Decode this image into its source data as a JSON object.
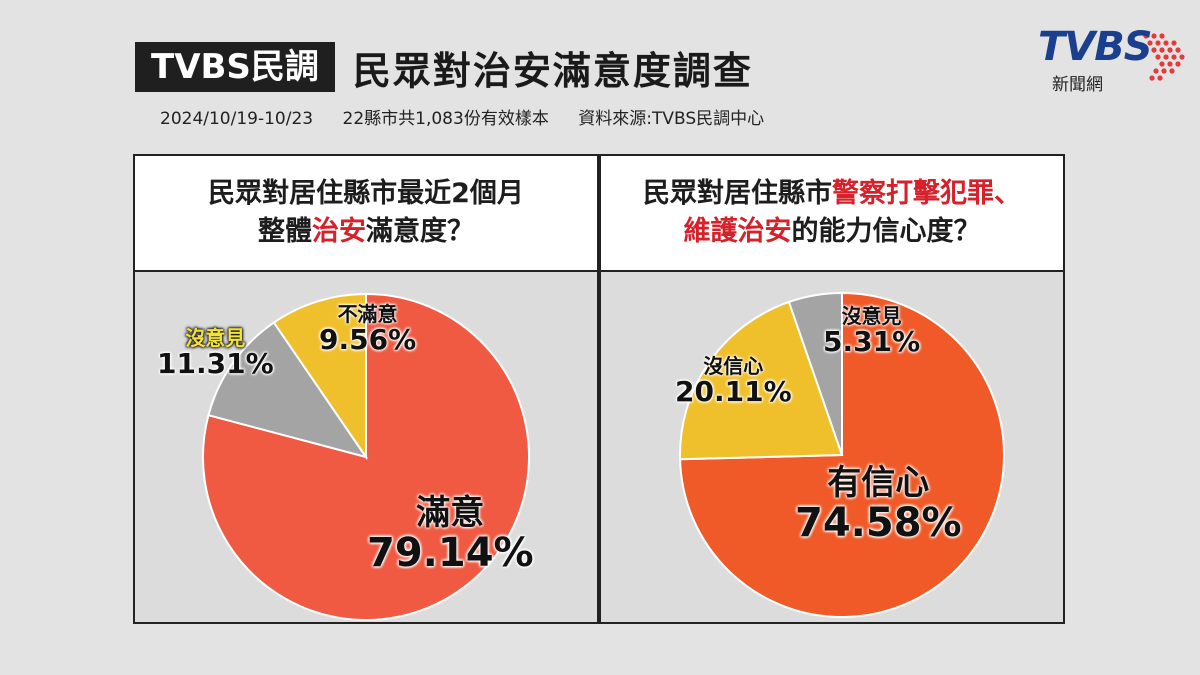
{
  "header": {
    "brand": "TVBS民調",
    "title": "民眾對治安滿意度調查",
    "date_range": "2024/10/19-10/23",
    "sample": "22縣市共1,083份有效樣本",
    "source": "資料來源:TVBS民調中心"
  },
  "logo": {
    "text": "TVBS",
    "subtext": "新聞網"
  },
  "colors": {
    "red": "#f05a42",
    "yellow": "#f0c02c",
    "gray": "#a4a4a4",
    "accent": "#d6202a"
  },
  "chart_data": [
    {
      "type": "pie",
      "question_line1": "民眾對居住縣市最近2個月",
      "question_line2_pre": "整體",
      "question_line2_hl": "治安",
      "question_line2_post": "滿意度？",
      "slices": [
        {
          "label": "滿意",
          "value": 79.14,
          "display": "79.14%",
          "color": "#f05a42"
        },
        {
          "label": "沒意見",
          "value": 11.31,
          "display": "11.31%",
          "color": "#a4a4a4"
        },
        {
          "label": "不滿意",
          "value": 9.56,
          "display": "9.56%",
          "color": "#f0c02c"
        }
      ]
    },
    {
      "type": "pie",
      "question_line1_pre": "民眾對居住縣市",
      "question_line1_hl": "警察打擊犯罪、",
      "question_line2_hl": "維護治安",
      "question_line2_post": "的能力信心度？",
      "slices": [
        {
          "label": "有信心",
          "value": 74.58,
          "display": "74.58%",
          "color": "#f05a28"
        },
        {
          "label": "沒信心",
          "value": 20.11,
          "display": "20.11%",
          "color": "#f0c02c"
        },
        {
          "label": "沒意見",
          "value": 5.31,
          "display": "5.31%",
          "color": "#a4a4a4"
        }
      ]
    }
  ]
}
